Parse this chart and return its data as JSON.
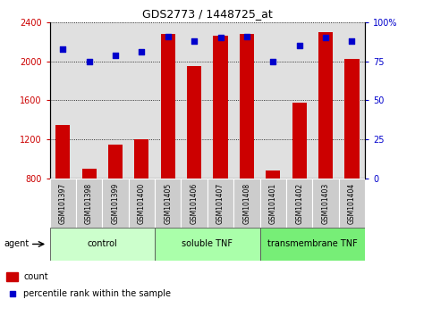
{
  "title": "GDS2773 / 1448725_at",
  "samples": [
    "GSM101397",
    "GSM101398",
    "GSM101399",
    "GSM101400",
    "GSM101405",
    "GSM101406",
    "GSM101407",
    "GSM101408",
    "GSM101401",
    "GSM101402",
    "GSM101403",
    "GSM101404"
  ],
  "counts": [
    1350,
    900,
    1150,
    1200,
    2280,
    1950,
    2260,
    2280,
    880,
    1580,
    2300,
    2020
  ],
  "percentiles": [
    83,
    75,
    79,
    81,
    91,
    88,
    90,
    91,
    75,
    85,
    90,
    88
  ],
  "bar_color": "#cc0000",
  "dot_color": "#0000cc",
  "ylim_left": [
    800,
    2400
  ],
  "ylim_right": [
    0,
    100
  ],
  "yticks_left": [
    800,
    1200,
    1600,
    2000,
    2400
  ],
  "yticks_right": [
    0,
    25,
    50,
    75,
    100
  ],
  "groups": [
    {
      "label": "control",
      "start": 0,
      "end": 4
    },
    {
      "label": "soluble TNF",
      "start": 4,
      "end": 8
    },
    {
      "label": "transmembrane TNF",
      "start": 8,
      "end": 12
    }
  ],
  "group_colors": [
    "#ccffcc",
    "#aaffaa",
    "#77ee77"
  ],
  "agent_label": "agent",
  "legend_items": [
    {
      "label": "count",
      "color": "#cc0000",
      "marker": "square"
    },
    {
      "label": "percentile rank within the sample",
      "color": "#0000cc",
      "marker": "square"
    }
  ],
  "tick_label_color_left": "#cc0000",
  "tick_label_color_right": "#0000cc",
  "background_color": "#ffffff",
  "plot_bg_color": "#e0e0e0",
  "grid_color": "#000000",
  "bar_bottom": 800
}
